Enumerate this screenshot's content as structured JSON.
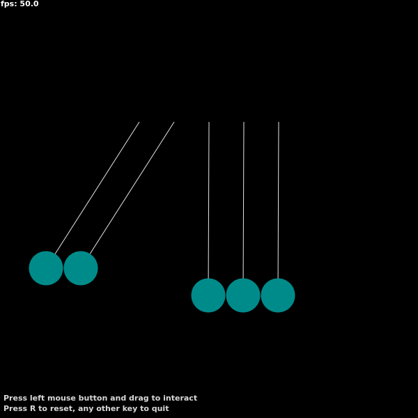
{
  "hud": {
    "fps": "fps: 50.0"
  },
  "instructions": {
    "line1": "Press left mouse button and drag to interact",
    "line2": "Press R to reset, any other key to quit"
  },
  "colors": {
    "background": "#000000",
    "ball": "#008b8b",
    "string": "#e6e6e6",
    "text": "#ffffff"
  }
}
